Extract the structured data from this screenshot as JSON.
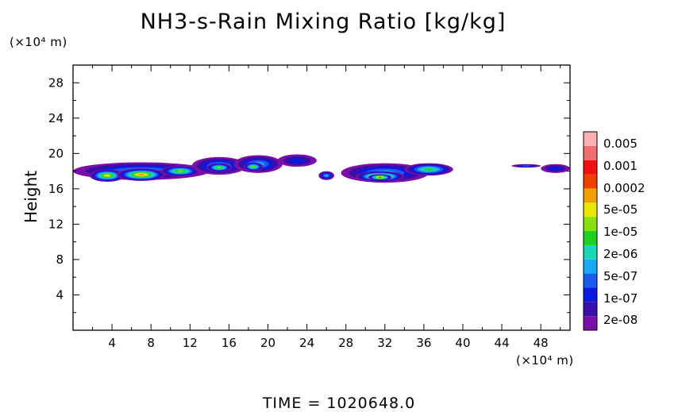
{
  "chart_data": {
    "type": "heatmap",
    "title": "NH3-s-Rain Mixing Ratio [kg/kg]",
    "ylabel": "Height",
    "y_unit": "(×10⁴ m)",
    "x_unit": "(×10⁴ m)",
    "footer": "TIME = 1020648.0",
    "xlim": [
      0,
      51
    ],
    "ylim": [
      0,
      30
    ],
    "x_ticks": [
      4,
      8,
      12,
      16,
      20,
      24,
      28,
      32,
      36,
      40,
      44,
      48
    ],
    "y_ticks": [
      4,
      8,
      12,
      16,
      20,
      24,
      28
    ],
    "colorbar": {
      "labels": [
        "0.005",
        "0.001",
        "0.0002",
        "5e-05",
        "1e-05",
        "2e-06",
        "5e-07",
        "1e-07",
        "2e-08"
      ],
      "colors": [
        "#7b0fa8",
        "#3a0fa8",
        "#0a1ae0",
        "#1a5af0",
        "#1ca8f0",
        "#18d8b8",
        "#20d020",
        "#88e010",
        "#e8e800",
        "#f0a000",
        "#f04000",
        "#f01010",
        "#f07070",
        "#f8b0b0"
      ]
    },
    "blobs": [
      {
        "x": 7,
        "y": 18.0,
        "rx": 7.0,
        "ry": 1.0,
        "level": 4
      },
      {
        "x": 3.5,
        "y": 17.5,
        "rx": 1.8,
        "ry": 0.7,
        "level": 8
      },
      {
        "x": 7,
        "y": 17.6,
        "rx": 2.5,
        "ry": 0.7,
        "level": 9
      },
      {
        "x": 11,
        "y": 18.0,
        "rx": 2.0,
        "ry": 0.6,
        "level": 7
      },
      {
        "x": 15,
        "y": 18.6,
        "rx": 2.8,
        "ry": 1.0,
        "level": 4
      },
      {
        "x": 15,
        "y": 18.4,
        "rx": 1.3,
        "ry": 0.5,
        "level": 7
      },
      {
        "x": 19,
        "y": 18.8,
        "rx": 2.5,
        "ry": 1.0,
        "level": 4
      },
      {
        "x": 18.5,
        "y": 18.5,
        "rx": 1.0,
        "ry": 0.5,
        "level": 7
      },
      {
        "x": 23,
        "y": 19.2,
        "rx": 2.0,
        "ry": 0.7,
        "level": 2
      },
      {
        "x": 26,
        "y": 17.5,
        "rx": 0.8,
        "ry": 0.5,
        "level": 4
      },
      {
        "x": 32,
        "y": 17.8,
        "rx": 4.5,
        "ry": 1.1,
        "level": 4
      },
      {
        "x": 31.5,
        "y": 17.4,
        "rx": 2.5,
        "ry": 0.6,
        "level": 9
      },
      {
        "x": 31.5,
        "y": 17.3,
        "rx": 1.2,
        "ry": 0.35,
        "level": 10
      },
      {
        "x": 36.5,
        "y": 18.2,
        "rx": 2.5,
        "ry": 0.7,
        "level": 6
      },
      {
        "x": 46.5,
        "y": 18.6,
        "rx": 1.5,
        "ry": 0.2,
        "level": 3
      },
      {
        "x": 49.5,
        "y": 18.3,
        "rx": 1.5,
        "ry": 0.5,
        "level": 2
      }
    ]
  }
}
